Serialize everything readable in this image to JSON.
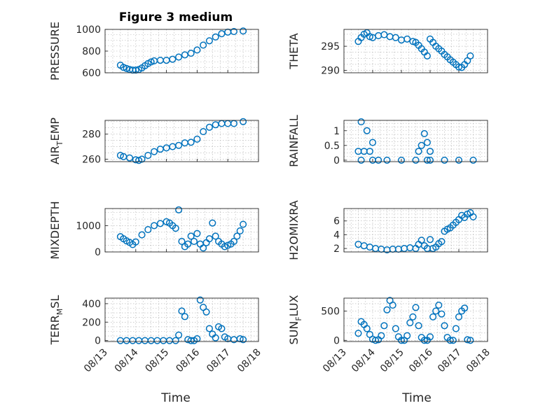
{
  "figure": {
    "title": "Figure 3 medium",
    "xlabel": "Time"
  },
  "colors": {
    "marker": "#0072bd",
    "axis": "#262626",
    "grid": "#b0b0b0"
  },
  "chart_data": [
    {
      "id": "pressure",
      "type": "scatter",
      "title": "Figure 3 medium",
      "ylabel": "PRESSURE",
      "ylabel_sub": "",
      "ylim": [
        600,
        1000
      ],
      "yticks": [
        600,
        800,
        1000
      ],
      "xlim": [
        13,
        18
      ],
      "xticks": [],
      "grid": true,
      "marker": "circle",
      "x": [
        13.5,
        13.6,
        13.7,
        13.8,
        13.9,
        14.0,
        14.1,
        14.2,
        14.3,
        14.4,
        14.5,
        14.6,
        14.8,
        15.0,
        15.2,
        15.4,
        15.6,
        15.8,
        16.0,
        16.2,
        16.4,
        16.6,
        16.8,
        17.0,
        17.2,
        17.5
      ],
      "y": [
        670,
        650,
        640,
        630,
        625,
        625,
        630,
        645,
        665,
        685,
        700,
        710,
        715,
        715,
        725,
        745,
        765,
        780,
        810,
        855,
        895,
        930,
        960,
        975,
        980,
        985
      ]
    },
    {
      "id": "theta",
      "type": "scatter",
      "title": "",
      "ylabel": "THETA",
      "ylabel_sub": "",
      "ylim": [
        289.5,
        298.5
      ],
      "yticks": [
        290,
        295
      ],
      "xlim": [
        13,
        18
      ],
      "xticks": [],
      "grid": true,
      "marker": "circle",
      "x": [
        13.5,
        13.6,
        13.7,
        13.8,
        13.9,
        14.0,
        14.2,
        14.4,
        14.6,
        14.8,
        15.0,
        15.2,
        15.4,
        15.5,
        15.6,
        15.7,
        15.8,
        15.9,
        16.0,
        16.1,
        16.2,
        16.3,
        16.4,
        16.5,
        16.6,
        16.7,
        16.8,
        16.9,
        17.0,
        17.1,
        17.2,
        17.3,
        17.4
      ],
      "y": [
        296,
        296.8,
        297.5,
        297.8,
        297,
        296.8,
        297.2,
        297.4,
        297,
        296.8,
        296.3,
        296.5,
        296,
        295.8,
        295.2,
        294.5,
        293.8,
        293,
        296.5,
        295.8,
        295,
        294.5,
        294,
        293.3,
        292.8,
        292.2,
        291.7,
        291.2,
        290.7,
        290.6,
        291.2,
        292,
        293
      ]
    },
    {
      "id": "air_temp",
      "type": "scatter",
      "title": "",
      "ylabel": "AIR",
      "ylabel_sub": "T",
      "ylabel_rest": "EMP",
      "ylim": [
        258,
        291
      ],
      "yticks": [
        260,
        280
      ],
      "xlim": [
        13,
        18
      ],
      "xticks": [],
      "grid": true,
      "marker": "circle",
      "x": [
        13.5,
        13.6,
        13.8,
        14.0,
        14.1,
        14.2,
        14.4,
        14.6,
        14.8,
        15.0,
        15.2,
        15.4,
        15.6,
        15.8,
        16.0,
        16.2,
        16.4,
        16.6,
        16.8,
        17.0,
        17.2,
        17.5
      ],
      "y": [
        263,
        262,
        261,
        259.5,
        259,
        260,
        263,
        266,
        268,
        269,
        270,
        271,
        273,
        273.5,
        276,
        282,
        285.5,
        287.5,
        288.5,
        288.5,
        288.5,
        290
      ]
    },
    {
      "id": "rainfall",
      "type": "scatter",
      "title": "",
      "ylabel": "RAINFALL",
      "ylabel_sub": "",
      "ylim": [
        -0.05,
        1.35
      ],
      "yticks": [
        0,
        0.5,
        1
      ],
      "yticklabels": [
        "0",
        "0.5",
        "1"
      ],
      "xlim": [
        13,
        18
      ],
      "xticks": [],
      "grid": true,
      "marker": "circle",
      "x": [
        13.5,
        13.6,
        13.6,
        13.7,
        13.8,
        13.9,
        14.0,
        14.0,
        14.2,
        14.5,
        15.0,
        15.5,
        15.6,
        15.7,
        15.8,
        15.9,
        15.9,
        16.0,
        16.0,
        16.5,
        17.0,
        17.5
      ],
      "y": [
        0.3,
        1.3,
        0,
        0.3,
        1.0,
        0.3,
        0.6,
        0,
        0,
        0,
        0,
        0,
        0.3,
        0.5,
        0.9,
        0.6,
        0,
        0.3,
        0,
        0,
        0,
        0
      ]
    },
    {
      "id": "mixdepth",
      "type": "scatter",
      "title": "",
      "ylabel": "MIXDEPTH",
      "ylabel_sub": "",
      "ylim": [
        0,
        1650
      ],
      "yticks": [
        0,
        1000
      ],
      "xlim": [
        13,
        18
      ],
      "xticks": [],
      "grid": true,
      "marker": "circle",
      "x": [
        13.5,
        13.6,
        13.7,
        13.8,
        13.9,
        14.0,
        14.2,
        14.4,
        14.6,
        14.8,
        15.0,
        15.1,
        15.2,
        15.3,
        15.4,
        15.5,
        15.6,
        15.7,
        15.8,
        15.9,
        16.0,
        16.1,
        16.2,
        16.3,
        16.4,
        16.5,
        16.6,
        16.7,
        16.8,
        16.9,
        17.0,
        17.1,
        17.2,
        17.3,
        17.4,
        17.5
      ],
      "y": [
        580,
        500,
        420,
        360,
        280,
        380,
        650,
        850,
        1000,
        1080,
        1150,
        1100,
        1000,
        900,
        1600,
        400,
        200,
        300,
        600,
        400,
        700,
        300,
        150,
        350,
        500,
        1100,
        600,
        400,
        300,
        200,
        250,
        300,
        400,
        600,
        800,
        1050
      ]
    },
    {
      "id": "h2omixra",
      "type": "scatter",
      "title": "",
      "ylabel": "H2OMIXRA",
      "ylabel_sub": "",
      "ylim": [
        1.5,
        7.8
      ],
      "yticks": [
        2,
        4,
        6
      ],
      "xlim": [
        13,
        18
      ],
      "xticks": [],
      "grid": true,
      "marker": "circle",
      "x": [
        13.5,
        13.7,
        13.9,
        14.1,
        14.3,
        14.5,
        14.7,
        14.9,
        15.1,
        15.3,
        15.5,
        15.6,
        15.7,
        15.8,
        15.9,
        16.0,
        16.1,
        16.2,
        16.3,
        16.4,
        16.5,
        16.6,
        16.7,
        16.8,
        16.9,
        17.0,
        17.1,
        17.2,
        17.3,
        17.4,
        17.5
      ],
      "y": [
        2.6,
        2.4,
        2.2,
        2.0,
        1.9,
        1.8,
        1.9,
        1.9,
        2.0,
        2.1,
        2.0,
        2.6,
        3.2,
        2.4,
        2.0,
        3.3,
        2.0,
        2.2,
        2.7,
        3.0,
        4.5,
        4.8,
        5.0,
        5.4,
        5.8,
        6.2,
        6.8,
        6.5,
        7.0,
        7.2,
        6.6
      ]
    },
    {
      "id": "terr_msl",
      "type": "scatter",
      "title": "",
      "ylabel": "TERR",
      "ylabel_sub": "M",
      "ylabel_rest": "SL",
      "ylim": [
        -10,
        460
      ],
      "yticks": [
        0,
        200,
        400
      ],
      "xlim": [
        13,
        18
      ],
      "xticks": [
        13,
        14,
        15,
        16,
        17,
        18
      ],
      "xticklabels": [
        "08/13",
        "08/14",
        "08/15",
        "08/16",
        "08/17",
        "08/18"
      ],
      "grid": true,
      "marker": "circle",
      "x": [
        13.5,
        13.7,
        13.9,
        14.1,
        14.3,
        14.5,
        14.7,
        14.9,
        15.1,
        15.3,
        15.4,
        15.5,
        15.6,
        15.7,
        15.8,
        15.9,
        16.0,
        16.1,
        16.2,
        16.3,
        16.4,
        16.5,
        16.6,
        16.7,
        16.8,
        16.9,
        17.0,
        17.2,
        17.4,
        17.5
      ],
      "y": [
        0,
        0,
        0,
        0,
        0,
        0,
        0,
        0,
        0,
        0,
        60,
        320,
        260,
        10,
        0,
        0,
        20,
        440,
        360,
        310,
        130,
        70,
        30,
        150,
        130,
        40,
        20,
        10,
        20,
        10
      ]
    },
    {
      "id": "sun_flux",
      "type": "scatter",
      "title": "",
      "ylabel": "SUN",
      "ylabel_sub": "F",
      "ylabel_rest": "LUX",
      "ylim": [
        -20,
        720
      ],
      "yticks": [
        0,
        500
      ],
      "xlim": [
        13,
        18
      ],
      "xticks": [
        13,
        14,
        15,
        16,
        17,
        18
      ],
      "xticklabels": [
        "08/13",
        "08/14",
        "08/15",
        "08/16",
        "08/17",
        "08/18"
      ],
      "grid": true,
      "marker": "circle",
      "x": [
        13.5,
        13.6,
        13.7,
        13.8,
        13.9,
        14.0,
        14.1,
        14.2,
        14.3,
        14.4,
        14.5,
        14.6,
        14.7,
        14.8,
        14.9,
        15.0,
        15.1,
        15.2,
        15.3,
        15.4,
        15.5,
        15.6,
        15.7,
        15.8,
        15.9,
        16.0,
        16.1,
        16.2,
        16.3,
        16.4,
        16.5,
        16.6,
        16.7,
        16.8,
        16.9,
        17.0,
        17.1,
        17.2,
        17.3,
        17.4
      ],
      "y": [
        120,
        320,
        270,
        200,
        100,
        20,
        0,
        10,
        80,
        250,
        520,
        680,
        600,
        200,
        60,
        0,
        0,
        80,
        300,
        400,
        560,
        250,
        50,
        0,
        0,
        60,
        400,
        500,
        600,
        450,
        250,
        50,
        0,
        0,
        200,
        400,
        500,
        550,
        10,
        0
      ]
    }
  ]
}
